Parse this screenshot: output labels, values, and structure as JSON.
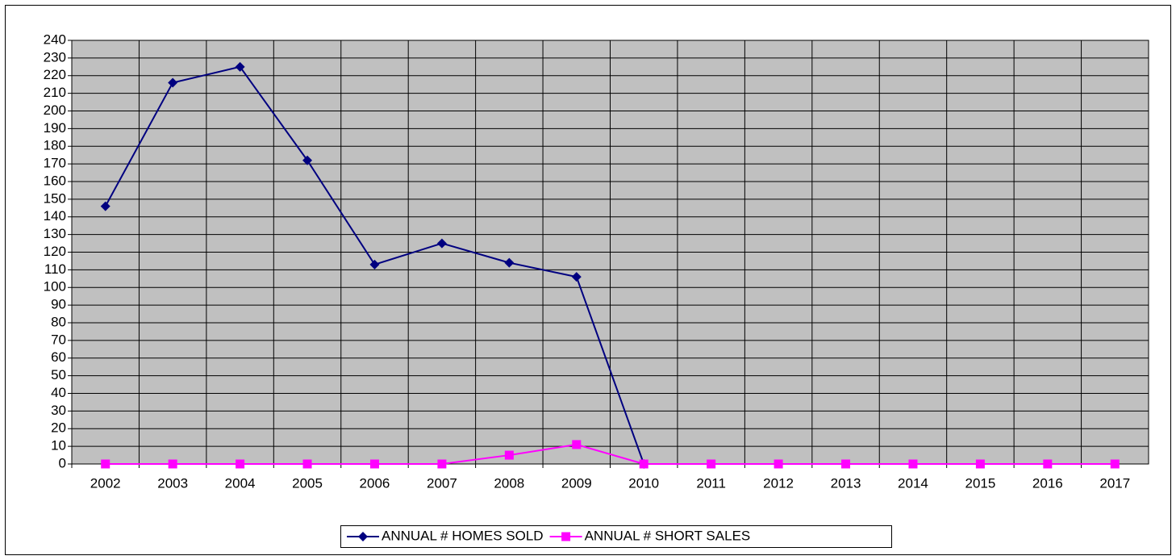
{
  "chart_data": {
    "type": "line",
    "categories": [
      "2002",
      "2003",
      "2004",
      "2005",
      "2006",
      "2007",
      "2008",
      "2009",
      "2010",
      "2011",
      "2012",
      "2013",
      "2014",
      "2015",
      "2016",
      "2017"
    ],
    "series": [
      {
        "name": "ANNUAL # HOMES SOLD",
        "color": "#000080",
        "marker": "diamond",
        "values": [
          146,
          216,
          225,
          172,
          113,
          125,
          114,
          106,
          0,
          null,
          null,
          null,
          null,
          null,
          null,
          null
        ]
      },
      {
        "name": "ANNUAL # SHORT SALES",
        "color": "#ff00ff",
        "marker": "square",
        "values": [
          0,
          0,
          0,
          0,
          0,
          0,
          5,
          11,
          0,
          0,
          0,
          0,
          0,
          0,
          0,
          0
        ]
      }
    ],
    "ylim": [
      0,
      240
    ],
    "yticks": [
      0,
      10,
      20,
      30,
      40,
      50,
      60,
      70,
      80,
      90,
      100,
      110,
      120,
      130,
      140,
      150,
      160,
      170,
      180,
      190,
      200,
      210,
      220,
      230,
      240
    ],
    "grid": true,
    "legend": "bottom",
    "plot_background": "#c0c0c0"
  }
}
